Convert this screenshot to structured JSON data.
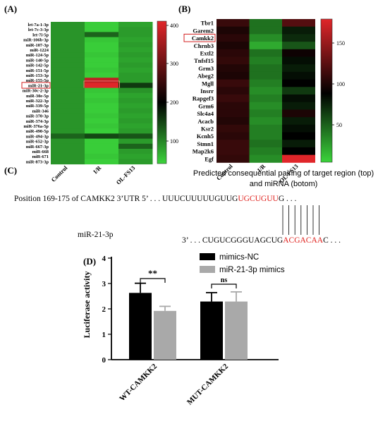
{
  "panels": {
    "A": {
      "label": "(A)",
      "rows": [
        "let-7a-1-3p",
        "let-7c-3-3p",
        "let-7i-5p",
        "miR-106b-3p",
        "miR-107-3p",
        "miR-1224",
        "miR-124-5p",
        "miR-140-5p",
        "miR-142-5p",
        "miR-151-5p",
        "miR-153-3p",
        "miR-155-5p",
        "miR-21-3p",
        "miR-30c-2-3p",
        "miR-30e-5p",
        "miR-322-3p",
        "miR-339-5p",
        "miR-346",
        "miR-370-3p",
        "miR-374-3p",
        "miR-376a-5p",
        "miR-490-5p",
        "miR-494-3p",
        "miR-652-3p",
        "miR-667-3p",
        "miR-668",
        "miR-671",
        "miR-873-3p"
      ],
      "highlighted_row": "miR-21-3p",
      "columns": [
        "Control",
        "I/R",
        "OL-FS13"
      ],
      "colorbar_ticks": [
        "400",
        "300",
        "200",
        "100"
      ]
    },
    "B": {
      "label": "(B)",
      "rows": [
        "Tbr1",
        "Garem2",
        "Camkk2",
        "Chrnb3",
        "Extl2",
        "Tnfsf15",
        "Grm3",
        "Abeg2",
        "Mgll",
        "Insrr",
        "Rapgef3",
        "Grm6",
        "Slc4a4",
        "Acacb",
        "Ksr2",
        "Kcnh5",
        "Stmn1",
        "Map2k6",
        "Egf"
      ],
      "highlighted_row": "Camkk2",
      "columns": [
        "Control",
        "I/R",
        "OL-FS13"
      ],
      "colorbar_ticks": [
        "150",
        "100",
        "50"
      ]
    },
    "C": {
      "label": "(C)",
      "title_line1": "Predicted consequential pairing of target region (top)",
      "title_line2": "and miRNA (botom)",
      "top_prefix": "Position 169-175 of CAMKK2 3’UTR  5’ . . . UUUCUUUUUGUUG",
      "top_highlight": "UGCUGUU",
      "top_suffix": "G . . .",
      "mirna_name": "miR-21-3p",
      "bottom_prefix": "3’ . . . CUGUCGGGUAGCUG",
      "bottom_highlight": "ACGACAA",
      "bottom_suffix": "C . . .",
      "highlight_color": "#e0201c"
    },
    "D": {
      "label": "(D)",
      "ylabel": "Luciferase activity",
      "yticks": [
        "0",
        "1",
        "2",
        "3",
        "4"
      ],
      "sig_left": "**",
      "sig_right": "ns"
    }
  },
  "chart_data": [
    {
      "type": "heatmap",
      "panel": "A",
      "columns": [
        "Control",
        "I/R",
        "OL-FS13"
      ],
      "rows": [
        "let-7a-1-3p",
        "let-7c-3-3p",
        "let-7i-5p",
        "miR-106b-3p",
        "miR-107-3p",
        "miR-1224",
        "miR-124-5p",
        "miR-140-5p",
        "miR-142-5p",
        "miR-151-5p",
        "miR-153-3p",
        "miR-155-5p",
        "miR-21-3p",
        "miR-30c-2-3p",
        "miR-30e-5p",
        "miR-322-3p",
        "miR-339-5p",
        "miR-346",
        "miR-370-3p",
        "miR-374-3p",
        "miR-376a-5p",
        "miR-490-5p",
        "miR-494-3p",
        "miR-652-3p",
        "miR-667-3p",
        "miR-668",
        "miR-671",
        "miR-873-3p"
      ],
      "values": [
        [
          95,
          55,
          85
        ],
        [
          95,
          55,
          90
        ],
        [
          95,
          130,
          90
        ],
        [
          95,
          60,
          85
        ],
        [
          95,
          55,
          90
        ],
        [
          95,
          55,
          85
        ],
        [
          95,
          60,
          90
        ],
        [
          95,
          55,
          85
        ],
        [
          95,
          55,
          90
        ],
        [
          95,
          60,
          85
        ],
        [
          95,
          55,
          90
        ],
        [
          95,
          370,
          90
        ],
        [
          95,
          400,
          160
        ],
        [
          95,
          60,
          95
        ],
        [
          95,
          55,
          85
        ],
        [
          95,
          60,
          90
        ],
        [
          95,
          55,
          85
        ],
        [
          95,
          55,
          90
        ],
        [
          95,
          60,
          85
        ],
        [
          95,
          55,
          90
        ],
        [
          95,
          60,
          85
        ],
        [
          95,
          55,
          90
        ],
        [
          130,
          150,
          140
        ],
        [
          95,
          55,
          90
        ],
        [
          95,
          55,
          130
        ],
        [
          95,
          55,
          90
        ],
        [
          95,
          60,
          85
        ],
        [
          95,
          55,
          90
        ]
      ],
      "color_range": [
        50,
        400
      ],
      "colorbar_ticks": [
        400,
        300,
        200,
        100
      ]
    },
    {
      "type": "heatmap",
      "panel": "B",
      "columns": [
        "Control",
        "I/R",
        "OL-FS13"
      ],
      "rows": [
        "Tbr1",
        "Garem2",
        "Camkk2",
        "Chrnb3",
        "Extl2",
        "Tnfsf15",
        "Grm3",
        "Abeg2",
        "Mgll",
        "Insrr",
        "Rapgef3",
        "Grm6",
        "Slc4a4",
        "Acacb",
        "Ksr2",
        "Kcnh5",
        "Stmn1",
        "Map2k6",
        "Egf"
      ],
      "values": [
        [
          120,
          60,
          130
        ],
        [
          110,
          60,
          90
        ],
        [
          115,
          50,
          85
        ],
        [
          110,
          40,
          70
        ],
        [
          115,
          60,
          105
        ],
        [
          118,
          55,
          95
        ],
        [
          112,
          60,
          90
        ],
        [
          110,
          60,
          95
        ],
        [
          120,
          55,
          100
        ],
        [
          115,
          50,
          80
        ],
        [
          120,
          55,
          95
        ],
        [
          115,
          50,
          90
        ],
        [
          115,
          55,
          110
        ],
        [
          112,
          50,
          90
        ],
        [
          118,
          55,
          95
        ],
        [
          115,
          55,
          100
        ],
        [
          120,
          60,
          90
        ],
        [
          120,
          55,
          100
        ],
        [
          118,
          50,
          180
        ]
      ],
      "color_range": [
        25,
        180
      ],
      "colorbar_ticks": [
        150,
        100,
        50
      ]
    },
    {
      "type": "bar",
      "panel": "D",
      "categories": [
        "WT-CAMKK2",
        "MUT-CAMKK2"
      ],
      "series": [
        {
          "name": "mimics-NC",
          "values": [
            2.63,
            2.29
          ],
          "errors": [
            0.38,
            0.35
          ],
          "color": "#000000"
        },
        {
          "name": "miR-21-3p mimics",
          "values": [
            1.92,
            2.29
          ],
          "errors": [
            0.18,
            0.38
          ],
          "color": "#a9a9a9"
        }
      ],
      "ylabel": "Luciferase activity",
      "ylim": [
        0,
        4
      ],
      "yticks": [
        0,
        1,
        2,
        3,
        4
      ],
      "legend_position": "top-right"
    }
  ]
}
